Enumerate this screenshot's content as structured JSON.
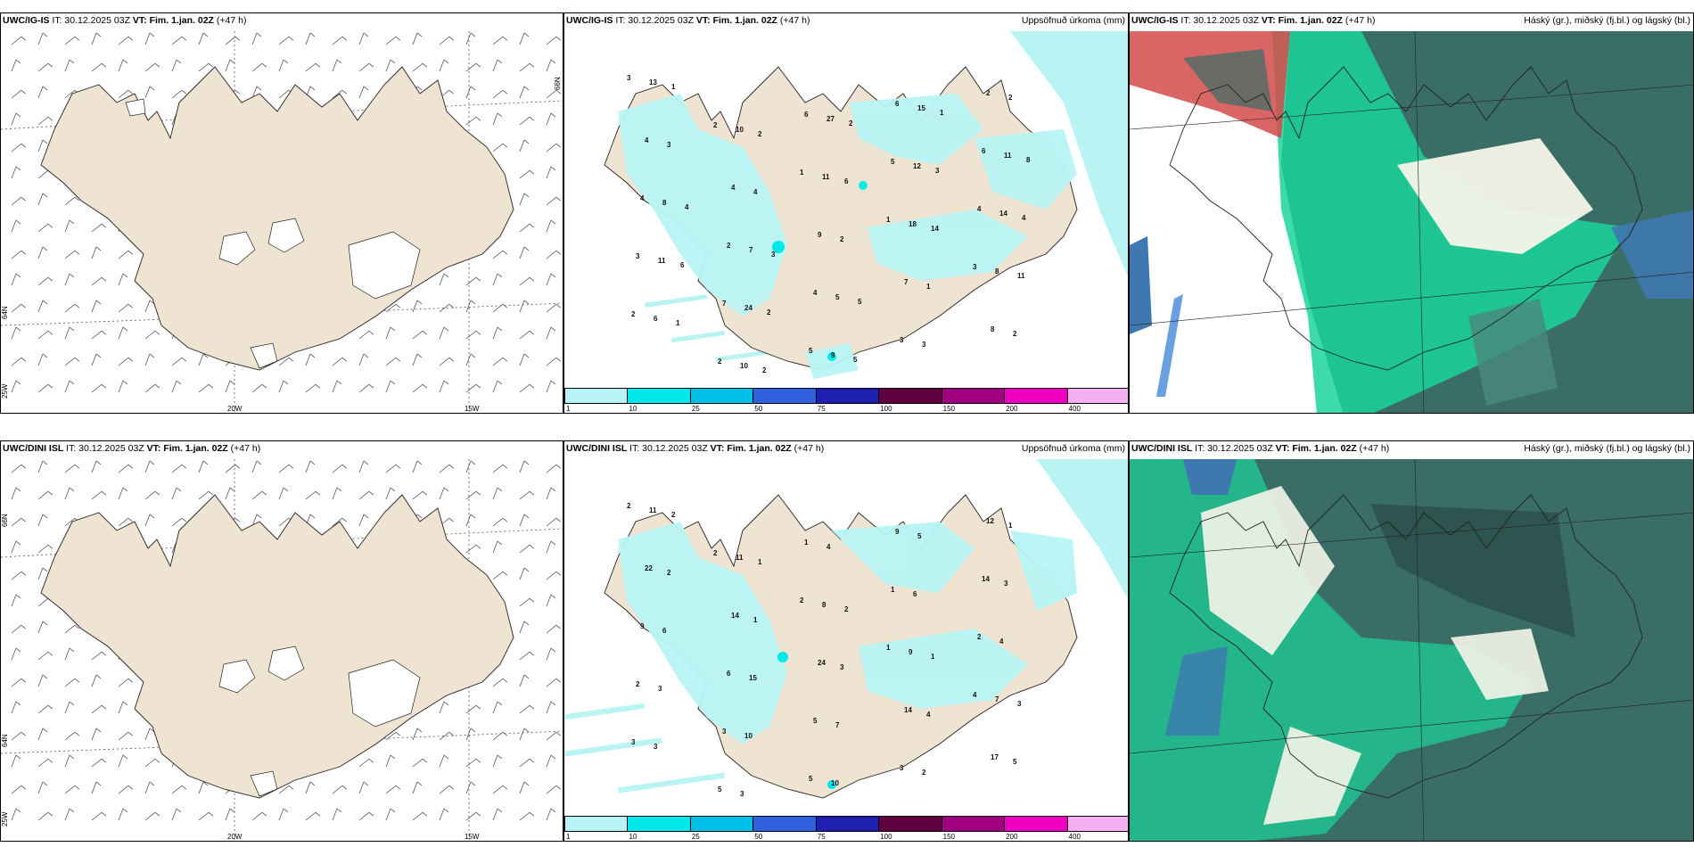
{
  "panels": {
    "p1": {
      "model": "UWC/IG-IS",
      "it": "IT: 30.12.2025 03Z",
      "vt_label": "VT:",
      "vt_value": "Fim. 1.jan. 02Z",
      "lead": "(+47 h)",
      "right_title": ""
    },
    "p2": {
      "model": "UWC/IG-IS",
      "it": "IT: 30.12.2025 03Z",
      "vt_label": "VT:",
      "vt_value": "Fim. 1.jan. 02Z",
      "lead": "(+47 h)",
      "right_title": "Uppsöfnuð úrkoma (mm)"
    },
    "p3": {
      "model": "UWC/IG-IS",
      "it": "IT: 30.12.2025 03Z",
      "vt_label": "VT:",
      "vt_value": "Fim. 1.jan. 02Z",
      "lead": "(+47 h)",
      "right_title": "Háský (gr.), miðský (fj.bl.) og lágský (bl.)"
    },
    "p4": {
      "model": "UWC/DINI ISL",
      "it": "IT: 30.12.2025 03Z",
      "vt_label": "VT:",
      "vt_value": "Fim. 1.jan. 02Z",
      "lead": "(+47 h)",
      "right_title": ""
    },
    "p5": {
      "model": "UWC/DINI ISL",
      "it": "IT: 30.12.2025 03Z",
      "vt_label": "VT:",
      "vt_value": "Fim. 1.jan. 02Z",
      "lead": "(+47 h)",
      "right_title": "Uppsöfnuð úrkoma (mm)"
    },
    "p6": {
      "model": "UWC/DINI ISL",
      "it": "IT: 30.12.2025 03Z",
      "vt_label": "VT:",
      "vt_value": "Fim. 1.jan. 02Z",
      "lead": "(+47 h)",
      "right_title": "Háský (gr.), miðský (fj.bl.) og lágský (bl.)"
    }
  },
  "axis_labels": {
    "lon_20w": "20W",
    "lon_15w": "15W",
    "lon_25w": "25W",
    "lat_66n": "66N",
    "lat_64n": "64N"
  },
  "colorbar": {
    "labels": [
      "1",
      "10",
      "25",
      "50",
      "75",
      "100",
      "150",
      "200",
      "400"
    ],
    "colors": [
      "#b8f4f4",
      "#00e8e8",
      "#00c0e8",
      "#3060e0",
      "#2020b0",
      "#600040",
      "#a00080",
      "#f000c0",
      "#f4b0f0"
    ]
  },
  "precip_values_top": [
    "3",
    "2",
    "1",
    "1",
    "3",
    "2",
    "2",
    "6",
    "5",
    "4",
    "3",
    "7",
    "5",
    "6",
    "6",
    "4",
    "2",
    "4",
    "3",
    "2",
    "4",
    "4",
    "9",
    "7",
    "8",
    "13",
    "10",
    "11",
    "18",
    "8",
    "6",
    "10",
    "27",
    "12",
    "14",
    "11",
    "24",
    "9",
    "15",
    "11",
    "8",
    "7",
    "5",
    "3",
    "2",
    "3",
    "4",
    "2",
    "1",
    "2",
    "1",
    "2",
    "6",
    "14",
    "11",
    "1",
    "2",
    "2",
    "3",
    "4",
    "6",
    "2",
    "5",
    "1",
    "8",
    "4",
    "3",
    "5"
  ],
  "precip_values_bottom": [
    "2",
    "2",
    "2",
    "1",
    "4",
    "3",
    "5",
    "1",
    "1",
    "2",
    "2",
    "3",
    "5",
    "9",
    "14",
    "9",
    "6",
    "5",
    "3",
    "12",
    "22",
    "14",
    "24",
    "14",
    "17",
    "11",
    "11",
    "8",
    "9",
    "7",
    "3",
    "3",
    "4",
    "6",
    "4",
    "3",
    "10",
    "10",
    "5",
    "3",
    "6",
    "15",
    "7",
    "2",
    "1",
    "2",
    "1",
    "3",
    "4",
    "5",
    "2",
    "1",
    "2",
    "1",
    "3"
  ],
  "colors": {
    "land": "#efe3d2",
    "ice": "#ffffff",
    "cloud_high": "#3a6d66",
    "cloud_mid": "#1bd49b",
    "cloud_low": "#3f78b0",
    "cloud_red": "#d24a4a"
  }
}
